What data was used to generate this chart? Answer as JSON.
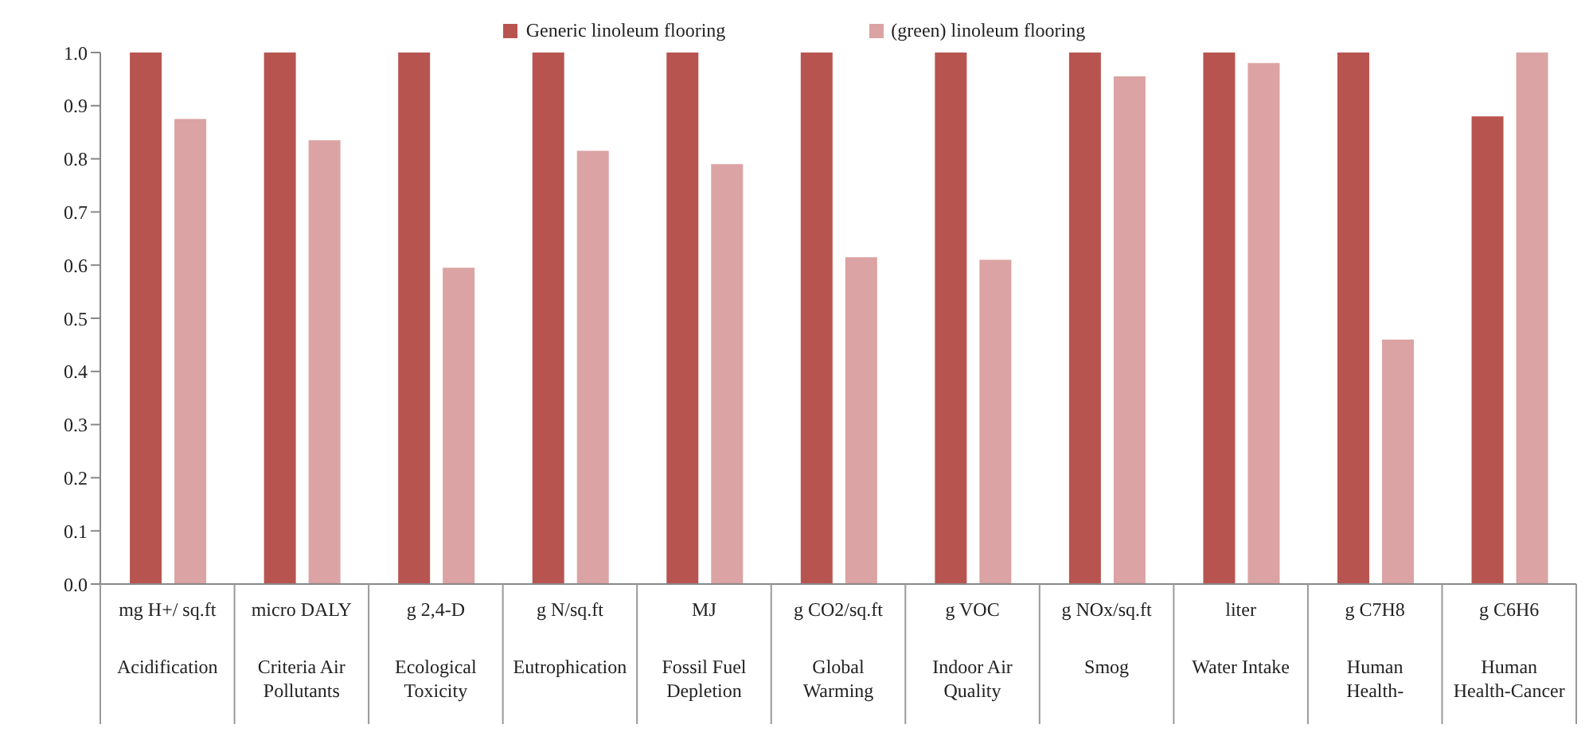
{
  "chart_data": {
    "type": "bar",
    "categories": [
      "mg H+/ sq.ft\nAcidification",
      "micro DALY\nCriteria Air Pollutants",
      "g 2,4-D\nEcological Toxicity",
      "g N/sq.ft\nEutrophication",
      "MJ\nFossil Fuel Depletion",
      "g CO2/sq.ft\nGlobal Warming",
      "g VOC\nIndoor Air Quality",
      "g NOx/sq.ft\nSmog",
      "liter\nWater Intake",
      "g C7H8\nHuman Health-",
      "g C6H6\nHuman Health-Cancer"
    ],
    "series": [
      {
        "name": "Generic linoleum flooring",
        "color": "#b85450",
        "values": [
          1.0,
          1.0,
          1.0,
          1.0,
          1.0,
          1.0,
          1.0,
          1.0,
          1.0,
          1.0,
          0.88
        ]
      },
      {
        "name": "(green) linoleum flooring",
        "color": "#dba3a3",
        "values": [
          0.875,
          0.835,
          0.595,
          0.815,
          0.79,
          0.615,
          0.61,
          0.955,
          0.98,
          0.46,
          1.0
        ]
      }
    ],
    "ylim": [
      0,
      1
    ],
    "yticks": [
      {
        "value": 0,
        "label": "0.0"
      },
      {
        "value": 0.1,
        "label": "0.1"
      },
      {
        "value": 0.2,
        "label": "0.2"
      },
      {
        "value": 0.3,
        "label": "0.3"
      },
      {
        "value": 0.4,
        "label": "0.4"
      },
      {
        "value": 0.5,
        "label": "0.5"
      },
      {
        "value": 0.6,
        "label": "0.6"
      },
      {
        "value": 0.7,
        "label": "0.7"
      },
      {
        "value": 0.8,
        "label": "0.8"
      },
      {
        "value": 0.9,
        "label": "0.9"
      },
      {
        "value": 1,
        "label": "1.0"
      }
    ],
    "grid": false,
    "legend": "top"
  }
}
